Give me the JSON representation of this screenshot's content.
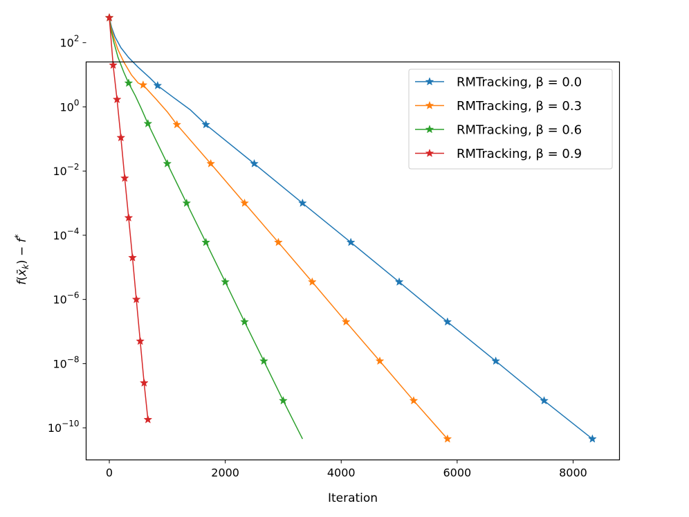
{
  "chart_data": {
    "type": "line",
    "xlabel": "Iteration",
    "ylabel": "f(x̄_k) − f*",
    "yscale": "log",
    "xlim": [
      -400,
      8800
    ],
    "ylim_log10": [
      -11,
      1.4
    ],
    "xticks": [
      0,
      2000,
      4000,
      6000,
      8000
    ],
    "xtick_labels": [
      "0",
      "2000",
      "4000",
      "6000",
      "8000"
    ],
    "yticks_log10": [
      2,
      0,
      -2,
      -4,
      -6,
      -8,
      -10
    ],
    "ytick_labels": [
      "10^2",
      "10^0",
      "10^-2",
      "10^-4",
      "10^-6",
      "10^-8",
      "10^-10"
    ],
    "grid": false,
    "legend_position": "upper right",
    "marker": "star",
    "series": [
      {
        "name": "RMTracking, β = 0.0",
        "color": "#1f77b4",
        "points": [
          {
            "x": 0,
            "y": 600
          },
          {
            "x": 40,
            "y": 300
          },
          {
            "x": 100,
            "y": 150
          },
          {
            "x": 200,
            "y": 70
          },
          {
            "x": 330,
            "y": 35
          },
          {
            "x": 500,
            "y": 17
          },
          {
            "x": 700,
            "y": 8
          },
          {
            "x": 833,
            "y": 4.6
          },
          {
            "x": 1100,
            "y": 2
          },
          {
            "x": 1400,
            "y": 0.8
          },
          {
            "x": 1666,
            "y": 0.28
          },
          {
            "x": 2500,
            "y": 0.017
          },
          {
            "x": 3333,
            "y": 0.001
          },
          {
            "x": 4166,
            "y": 6e-05
          },
          {
            "x": 5000,
            "y": 3.5e-06
          },
          {
            "x": 5833,
            "y": 2e-07
          },
          {
            "x": 6666,
            "y": 1.2e-08
          },
          {
            "x": 7500,
            "y": 7e-10
          },
          {
            "x": 8333,
            "y": 4.5e-11
          }
        ],
        "marker_x": [
          0,
          833,
          1666,
          2500,
          3333,
          4166,
          5000,
          5833,
          6666,
          7500,
          8333
        ]
      },
      {
        "name": "RMTracking, β = 0.3",
        "color": "#ff7f0e",
        "points": [
          {
            "x": 0,
            "y": 600
          },
          {
            "x": 30,
            "y": 300
          },
          {
            "x": 80,
            "y": 140
          },
          {
            "x": 150,
            "y": 60
          },
          {
            "x": 250,
            "y": 25
          },
          {
            "x": 380,
            "y": 10
          },
          {
            "x": 500,
            "y": 5.5
          },
          {
            "x": 583,
            "y": 4.8
          },
          {
            "x": 800,
            "y": 1.8
          },
          {
            "x": 1000,
            "y": 0.7
          },
          {
            "x": 1166,
            "y": 0.28
          },
          {
            "x": 1750,
            "y": 0.017
          },
          {
            "x": 2333,
            "y": 0.001
          },
          {
            "x": 2916,
            "y": 6e-05
          },
          {
            "x": 3500,
            "y": 3.5e-06
          },
          {
            "x": 4083,
            "y": 2e-07
          },
          {
            "x": 4666,
            "y": 1.2e-08
          },
          {
            "x": 5250,
            "y": 7e-10
          },
          {
            "x": 5833,
            "y": 4.5e-11
          }
        ],
        "marker_x": [
          0,
          583,
          1166,
          1750,
          2333,
          2916,
          3500,
          4083,
          4666,
          5250,
          5833
        ]
      },
      {
        "name": "RMTracking, β = 0.6",
        "color": "#2ca02c",
        "points": [
          {
            "x": 0,
            "y": 600
          },
          {
            "x": 30,
            "y": 250
          },
          {
            "x": 80,
            "y": 100
          },
          {
            "x": 150,
            "y": 35
          },
          {
            "x": 250,
            "y": 12
          },
          {
            "x": 333,
            "y": 5.5
          },
          {
            "x": 450,
            "y": 2.2
          },
          {
            "x": 550,
            "y": 0.9
          },
          {
            "x": 666,
            "y": 0.3
          },
          {
            "x": 1000,
            "y": 0.017
          },
          {
            "x": 1333,
            "y": 0.001
          },
          {
            "x": 1666,
            "y": 6e-05
          },
          {
            "x": 2000,
            "y": 3.5e-06
          },
          {
            "x": 2333,
            "y": 2e-07
          },
          {
            "x": 2666,
            "y": 1.2e-08
          },
          {
            "x": 3000,
            "y": 7e-10
          },
          {
            "x": 3333,
            "y": 4.5e-11
          }
        ],
        "marker_x": [
          0,
          333,
          666,
          1000,
          1333,
          1666,
          2000,
          2333,
          2666,
          3000
        ]
      },
      {
        "name": "RMTracking, β = 0.9",
        "color": "#d62728",
        "points": [
          {
            "x": 0,
            "y": 600
          },
          {
            "x": 66,
            "y": 20
          },
          {
            "x": 133,
            "y": 1.7
          },
          {
            "x": 200,
            "y": 0.11
          },
          {
            "x": 266,
            "y": 0.006
          },
          {
            "x": 333,
            "y": 0.00035
          },
          {
            "x": 400,
            "y": 2e-05
          },
          {
            "x": 466,
            "y": 1e-06
          },
          {
            "x": 533,
            "y": 5e-08
          },
          {
            "x": 600,
            "y": 2.5e-09
          },
          {
            "x": 666,
            "y": 1.8e-10
          }
        ],
        "marker_x": [
          0,
          66,
          133,
          200,
          266,
          333,
          400,
          466,
          533,
          600,
          666
        ]
      }
    ]
  }
}
